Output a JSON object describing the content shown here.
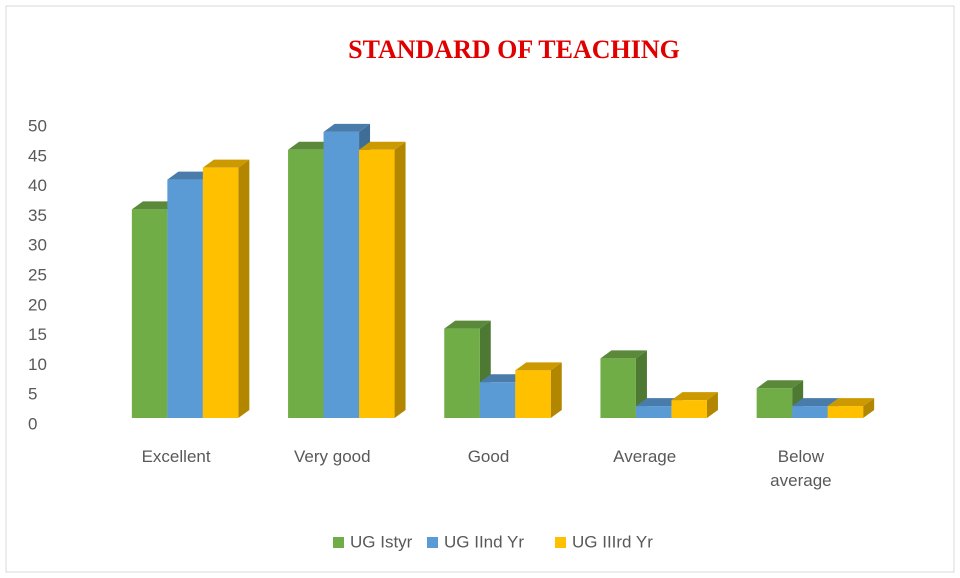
{
  "chart_data": {
    "type": "bar",
    "title": "STANDARD OF TEACHING",
    "categories": [
      "Excellent",
      "Very good",
      "Good",
      "Average",
      "Below average"
    ],
    "series": [
      {
        "name": "UG Istyr",
        "color": "#70ad47",
        "values": [
          35,
          45,
          15,
          10,
          5
        ]
      },
      {
        "name": "UG IInd Yr",
        "color": "#5b9bd5",
        "values": [
          40,
          48,
          6,
          2,
          2
        ]
      },
      {
        "name": "UG IIIrd Yr",
        "color": "#ffc000",
        "values": [
          42,
          45,
          8,
          3,
          2
        ]
      }
    ],
    "ylim": [
      0,
      50
    ],
    "yticks": [
      0,
      5,
      10,
      15,
      20,
      25,
      30,
      35,
      40,
      45,
      50
    ],
    "legend": "bottom"
  }
}
